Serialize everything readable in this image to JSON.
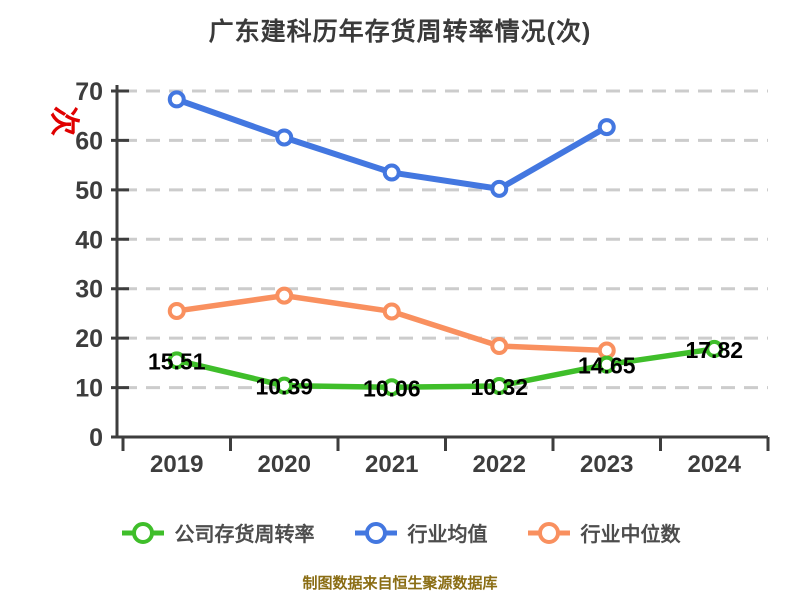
{
  "title": "广东建科历年存货周转率情况(次)",
  "footer": "制图数据来自恒生聚源数据库",
  "y_axis": {
    "unit": "次",
    "unit_color": "#e00000",
    "ticks": [
      0,
      10,
      20,
      30,
      40,
      50,
      60,
      70
    ],
    "max": 70
  },
  "x_axis": {
    "labels": [
      "2019",
      "2020",
      "2021",
      "2022",
      "2023",
      "2024"
    ]
  },
  "colors": {
    "axis": "#3d3d3d",
    "grid": "#cccccc",
    "tick_label": "#3d3d3d",
    "point_label": "#000000",
    "company": "#3fbe2a",
    "industry_mean": "#4377e0",
    "industry_median": "#f9905f"
  },
  "chart_data": {
    "type": "line",
    "title": "广东建科历年存货周转率情况(次)",
    "categories": [
      "2019",
      "2020",
      "2021",
      "2022",
      "2023",
      "2024"
    ],
    "ylim": [
      0,
      70
    ],
    "yticks": [
      0,
      10,
      20,
      30,
      40,
      50,
      60,
      70
    ],
    "grid": "horizontal-dashed",
    "legend_position": "bottom",
    "series": [
      {
        "name": "公司存货周转率",
        "color": "#3fbe2a",
        "values": [
          15.51,
          10.39,
          10.06,
          10.32,
          14.65,
          17.82
        ],
        "point_labels": [
          "15.51",
          "10.39",
          "10.06",
          "10.32",
          "14.65",
          "17.82"
        ],
        "show_point_labels": true
      },
      {
        "name": "行业均值",
        "color": "#4377e0",
        "values": [
          68.3,
          60.6,
          53.5,
          50.2,
          62.7,
          null
        ],
        "show_point_labels": false
      },
      {
        "name": "行业中位数",
        "color": "#f9905f",
        "values": [
          25.5,
          28.6,
          25.4,
          18.4,
          17.5,
          null
        ],
        "show_point_labels": false
      }
    ]
  }
}
